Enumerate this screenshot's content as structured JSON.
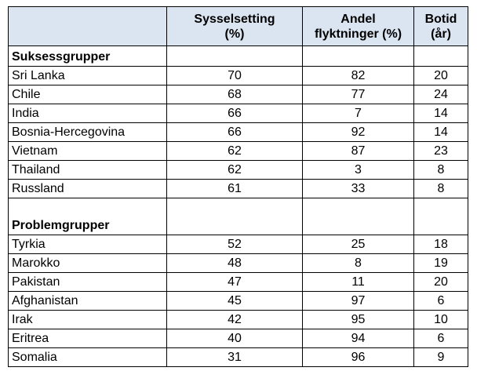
{
  "table": {
    "columns": [
      "",
      "Sysselsetting\n(%)",
      "Andel\nflyktninger (%)",
      "Botid\n(år)"
    ],
    "groups": [
      {
        "title": "Suksessgrupper",
        "rows": [
          [
            "Sri Lanka",
            70,
            82,
            20
          ],
          [
            "Chile",
            68,
            77,
            24
          ],
          [
            "India",
            66,
            7,
            14
          ],
          [
            "Bosnia-Hercegovina",
            66,
            92,
            14
          ],
          [
            "Vietnam",
            62,
            87,
            23
          ],
          [
            "Thailand",
            62,
            3,
            8
          ],
          [
            "Russland",
            61,
            33,
            8
          ]
        ]
      },
      {
        "title": "Problemgrupper",
        "rows": [
          [
            "Tyrkia",
            52,
            25,
            18
          ],
          [
            "Marokko",
            48,
            8,
            19
          ],
          [
            "Pakistan",
            47,
            11,
            20
          ],
          [
            "Afghanistan",
            45,
            97,
            6
          ],
          [
            "Irak",
            42,
            95,
            10
          ],
          [
            "Eritrea",
            40,
            94,
            6
          ],
          [
            "Somalia",
            31,
            96,
            9
          ]
        ]
      }
    ]
  }
}
